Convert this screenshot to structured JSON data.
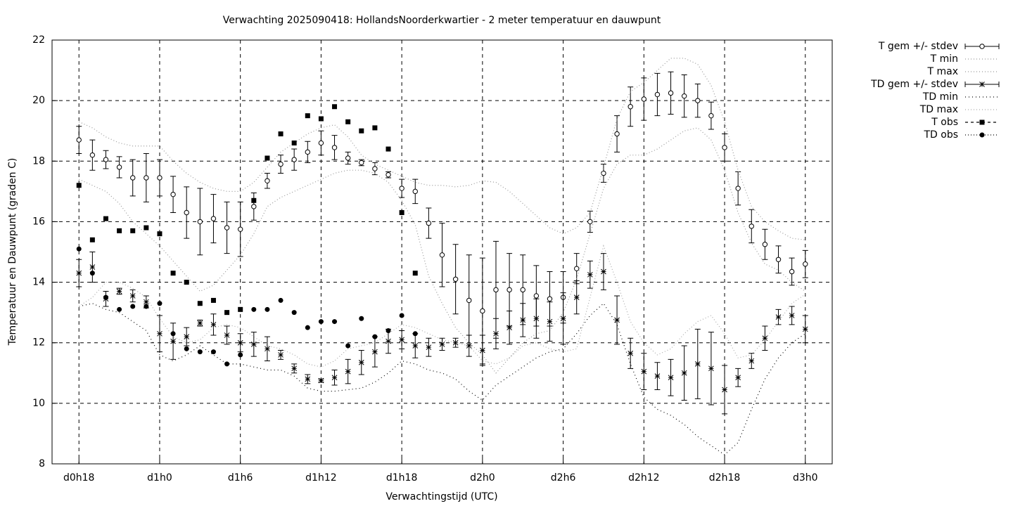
{
  "chart_data": {
    "type": "line",
    "title": "Verwachting 2025090418: HollandsNoorderkwartier - 2 meter temperatuur en dauwpunt",
    "xlabel": "Verwachtingstijd (UTC)",
    "ylabel": "Temperatuur en Dauwpunt (graden C)",
    "x": [
      18,
      19,
      20,
      21,
      22,
      23,
      24,
      25,
      26,
      27,
      28,
      29,
      30,
      31,
      32,
      33,
      34,
      35,
      36,
      37,
      38,
      39,
      40,
      41,
      42,
      43,
      44,
      45,
      46,
      47,
      48,
      49,
      50,
      51,
      52,
      53,
      54,
      55,
      56,
      57,
      58,
      59,
      60,
      61,
      62,
      63,
      64,
      65,
      66,
      67,
      68,
      69,
      70,
      71,
      72
    ],
    "xlim": [
      16,
      74
    ],
    "xticks": [
      {
        "value": 18,
        "label": "d0h18"
      },
      {
        "value": 24,
        "label": "d1h0"
      },
      {
        "value": 30,
        "label": "d1h6"
      },
      {
        "value": 36,
        "label": "d1h12"
      },
      {
        "value": 42,
        "label": "d1h18"
      },
      {
        "value": 48,
        "label": "d2h0"
      },
      {
        "value": 54,
        "label": "d2h6"
      },
      {
        "value": 60,
        "label": "d2h12"
      },
      {
        "value": 66,
        "label": "d2h18"
      },
      {
        "value": 72,
        "label": "d3h0"
      }
    ],
    "ylim": [
      8,
      22
    ],
    "yticks": [
      8,
      10,
      12,
      14,
      16,
      18,
      20,
      22
    ],
    "grid": true,
    "legend": "outside-right-top",
    "series": [
      {
        "name": "T gem +/- stdev",
        "style": "errorbar",
        "marker": "circle",
        "color": "#000000",
        "values": [
          18.7,
          18.2,
          18.05,
          17.8,
          17.45,
          17.45,
          17.45,
          16.9,
          16.3,
          16.0,
          16.1,
          15.8,
          15.75,
          16.5,
          17.35,
          17.9,
          18.05,
          18.3,
          18.6,
          18.45,
          18.1,
          17.95,
          17.75,
          17.55,
          17.1,
          17.0,
          15.95,
          14.9,
          14.1,
          13.4,
          13.05,
          13.75,
          13.75,
          13.75,
          13.55,
          13.45,
          13.5,
          14.45,
          16.0,
          17.6,
          18.9,
          19.8,
          20.05,
          20.2,
          20.25,
          20.15,
          20.0,
          19.5,
          18.45,
          17.1,
          15.85,
          15.25,
          14.75,
          14.35,
          14.6
        ],
        "errors": [
          0.45,
          0.5,
          0.3,
          0.35,
          0.6,
          0.8,
          0.6,
          0.6,
          0.85,
          1.1,
          0.8,
          0.85,
          0.9,
          0.45,
          0.25,
          0.3,
          0.35,
          0.35,
          0.4,
          0.4,
          0.2,
          0.1,
          0.2,
          0.1,
          0.3,
          0.4,
          0.5,
          1.05,
          1.15,
          1.5,
          1.75,
          1.6,
          1.2,
          1.15,
          1.0,
          0.9,
          0.85,
          0.5,
          0.35,
          0.3,
          0.6,
          0.65,
          0.7,
          0.7,
          0.7,
          0.7,
          0.55,
          0.45,
          0.45,
          0.55,
          0.55,
          0.5,
          0.45,
          0.45,
          0.45
        ]
      },
      {
        "name": "T min",
        "style": "line",
        "dash": "1,3",
        "color": "#999999",
        "values": [
          17.4,
          17.2,
          17.0,
          16.6,
          16.0,
          15.6,
          15.2,
          14.7,
          14.2,
          13.7,
          13.9,
          14.4,
          14.9,
          15.6,
          16.5,
          16.8,
          17.0,
          17.2,
          17.4,
          17.6,
          17.7,
          17.7,
          17.6,
          17.3,
          16.7,
          15.9,
          14.2,
          13.3,
          12.5,
          12.0,
          11.6,
          11.0,
          11.5,
          12.0,
          12.3,
          12.4,
          13.0,
          14.1,
          15.6,
          17.1,
          17.9,
          18.2,
          18.2,
          18.4,
          18.7,
          19.0,
          19.1,
          18.7,
          17.7,
          16.3,
          15.3,
          14.6,
          14.4,
          14.0,
          13.7
        ]
      },
      {
        "name": "T max",
        "style": "line",
        "dash": "1,3",
        "color": "#999999",
        "values": [
          19.3,
          19.1,
          18.8,
          18.6,
          18.5,
          18.5,
          18.5,
          18.0,
          17.6,
          17.3,
          17.1,
          17.0,
          17.0,
          17.3,
          17.8,
          18.3,
          18.6,
          18.9,
          19.1,
          19.2,
          18.8,
          18.2,
          17.9,
          17.7,
          17.5,
          17.3,
          17.2,
          17.2,
          17.15,
          17.2,
          17.35,
          17.3,
          17.0,
          16.6,
          16.2,
          15.8,
          15.6,
          15.8,
          16.3,
          17.8,
          19.4,
          20.3,
          20.6,
          21.0,
          21.4,
          21.4,
          21.2,
          20.5,
          19.3,
          17.7,
          16.5,
          16.0,
          15.7,
          15.45,
          15.4
        ]
      },
      {
        "name": "TD gem +/- stdev",
        "style": "errorbar",
        "marker": "star",
        "color": "#000000",
        "values": [
          14.3,
          14.5,
          13.45,
          13.7,
          13.55,
          13.35,
          12.3,
          12.05,
          12.2,
          12.65,
          12.6,
          12.25,
          12.0,
          11.95,
          11.8,
          11.6,
          11.15,
          10.8,
          10.75,
          10.85,
          11.05,
          11.35,
          11.7,
          12.05,
          12.1,
          11.9,
          11.85,
          11.95,
          12.0,
          11.9,
          11.75,
          12.3,
          12.5,
          12.75,
          12.8,
          12.7,
          12.8,
          13.5,
          14.25,
          14.35,
          12.75,
          11.65,
          11.05,
          10.9,
          10.85,
          11.0,
          11.3,
          11.15,
          10.45,
          10.85,
          11.4,
          12.15,
          12.85,
          12.9,
          12.45
        ],
        "errors": [
          0.45,
          0.5,
          0.25,
          0.1,
          0.2,
          0.2,
          0.6,
          0.6,
          0.3,
          0.1,
          0.35,
          0.3,
          0.3,
          0.4,
          0.4,
          0.15,
          0.15,
          0.15,
          0.05,
          0.25,
          0.4,
          0.4,
          0.5,
          0.4,
          0.3,
          0.4,
          0.3,
          0.2,
          0.15,
          0.35,
          0.5,
          0.5,
          0.55,
          0.55,
          0.65,
          0.65,
          0.85,
          0.55,
          0.45,
          0.6,
          0.8,
          0.5,
          0.6,
          0.45,
          0.6,
          0.9,
          1.15,
          1.2,
          0.8,
          0.3,
          0.25,
          0.4,
          0.25,
          0.3,
          0.45
        ]
      },
      {
        "name": "TD min",
        "style": "line",
        "dash": "1,4",
        "color": "#000000",
        "values": [
          13.2,
          13.3,
          13.1,
          13.0,
          12.7,
          12.4,
          11.6,
          11.4,
          11.6,
          11.9,
          11.6,
          11.3,
          11.3,
          11.2,
          11.1,
          11.1,
          10.9,
          10.5,
          10.4,
          10.4,
          10.45,
          10.5,
          10.7,
          11.0,
          11.4,
          11.3,
          11.1,
          11.0,
          10.8,
          10.4,
          10.1,
          10.6,
          10.9,
          11.2,
          11.5,
          11.7,
          11.8,
          12.3,
          12.9,
          13.3,
          12.6,
          11.3,
          10.2,
          9.8,
          9.6,
          9.3,
          8.9,
          8.6,
          8.3,
          8.7,
          9.8,
          10.8,
          11.5,
          12.0,
          12.3
        ]
      },
      {
        "name": "TD max",
        "style": "line",
        "dash": "1,3",
        "color": "#aaaaaa",
        "values": [
          13.2,
          13.5,
          14.0,
          14.0,
          13.8,
          13.5,
          12.8,
          12.2,
          12.0,
          12.1,
          12.5,
          12.6,
          12.5,
          12.2,
          11.9,
          11.8,
          11.6,
          11.3,
          11.2,
          11.4,
          11.8,
          11.9,
          12.0,
          12.3,
          12.6,
          12.5,
          12.3,
          12.1,
          12.0,
          11.9,
          11.4,
          11.3,
          11.5,
          11.9,
          12.0,
          11.8,
          11.7,
          11.8,
          13.5,
          15.2,
          14.0,
          12.7,
          12.0,
          11.6,
          11.8,
          12.3,
          12.7,
          12.9,
          12.3,
          11.5,
          11.6,
          12.1,
          12.7,
          13.3,
          13.6
        ]
      },
      {
        "name": "T obs",
        "style": "points",
        "marker": "square",
        "dash": "4,4",
        "color": "#000000",
        "values": [
          17.2,
          15.4,
          16.1,
          15.7,
          15.7,
          15.8,
          15.6,
          14.3,
          14.0,
          13.3,
          13.4,
          13.0,
          13.1,
          16.7,
          18.1,
          18.9,
          18.6,
          19.5,
          19.4,
          19.8,
          19.3,
          19.0,
          19.1,
          18.4,
          16.3,
          14.3,
          null,
          null,
          null,
          null,
          null,
          null,
          null,
          null,
          null,
          null,
          null,
          null,
          null,
          null,
          null,
          null,
          null,
          null,
          null,
          null,
          null,
          null,
          null,
          null,
          null,
          null,
          null,
          null,
          null
        ]
      },
      {
        "name": "TD obs",
        "style": "points",
        "marker": "dot",
        "dash": "1,3",
        "color": "#000000",
        "values": [
          15.1,
          14.3,
          13.5,
          13.1,
          13.2,
          13.2,
          13.3,
          12.3,
          11.8,
          11.7,
          11.7,
          11.3,
          11.6,
          13.1,
          13.1,
          13.4,
          13.0,
          12.5,
          12.7,
          12.7,
          11.9,
          12.8,
          12.2,
          12.4,
          12.9,
          12.3,
          null,
          null,
          null,
          null,
          null,
          null,
          null,
          null,
          null,
          null,
          null,
          null,
          null,
          null,
          null,
          null,
          null,
          null,
          null,
          null,
          null,
          null,
          null,
          null,
          null,
          null,
          null,
          null,
          null
        ]
      }
    ]
  }
}
